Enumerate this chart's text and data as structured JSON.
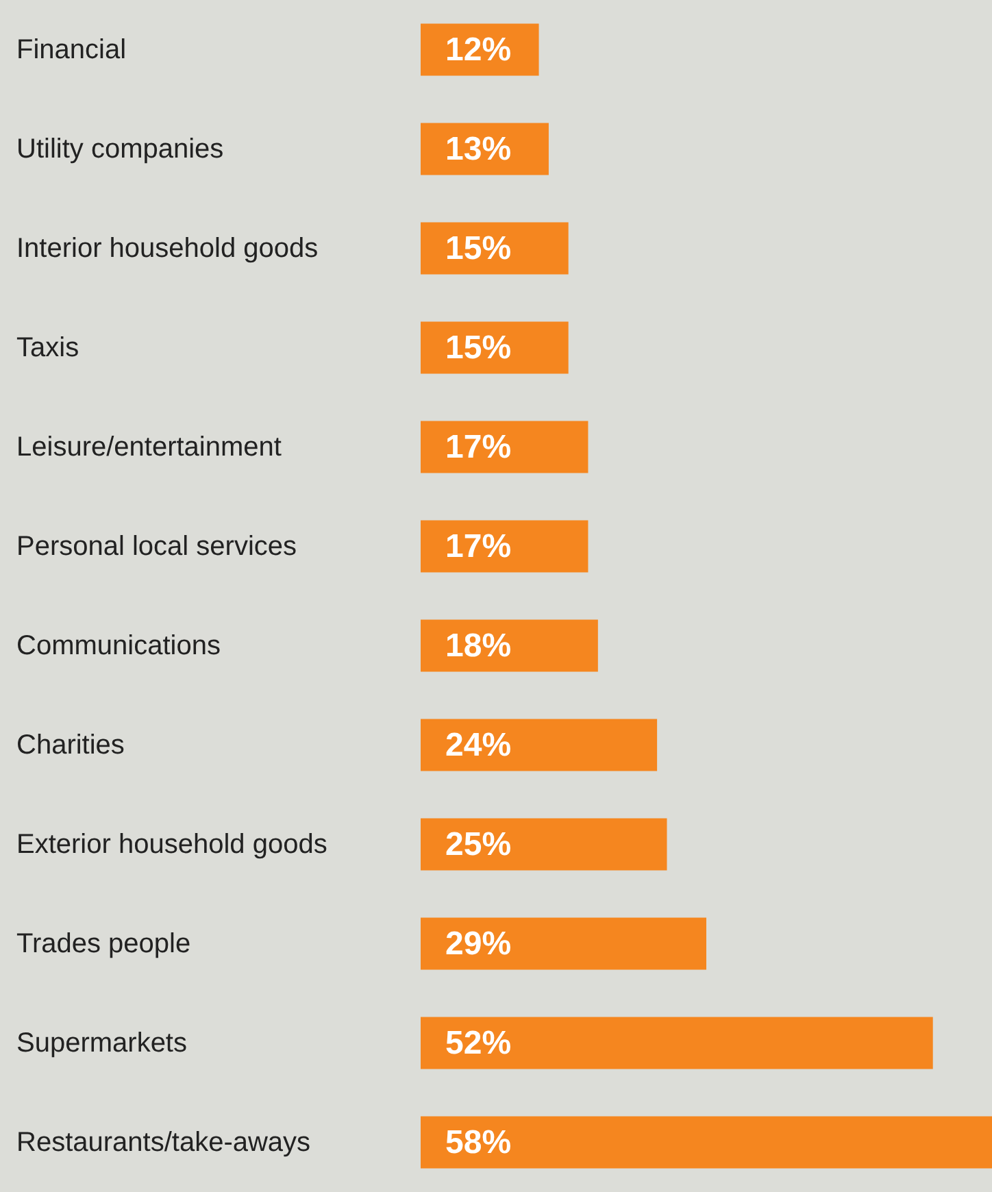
{
  "chart_data": {
    "type": "bar",
    "orientation": "horizontal",
    "categories": [
      "Financial",
      "Utility companies",
      "Interior household goods",
      "Taxis",
      "Leisure/entertainment",
      "Personal local services",
      "Communications",
      "Charities",
      "Exterior household goods",
      "Trades people",
      "Supermarkets",
      "Restaurants/take-aways"
    ],
    "values": [
      12,
      13,
      15,
      15,
      17,
      17,
      18,
      24,
      25,
      29,
      52,
      58
    ],
    "value_labels": [
      "12%",
      "13%",
      "15%",
      "15%",
      "17%",
      "17%",
      "18%",
      "24%",
      "25%",
      "29%",
      "52%",
      "58%"
    ],
    "color": "#f5861f"
  }
}
